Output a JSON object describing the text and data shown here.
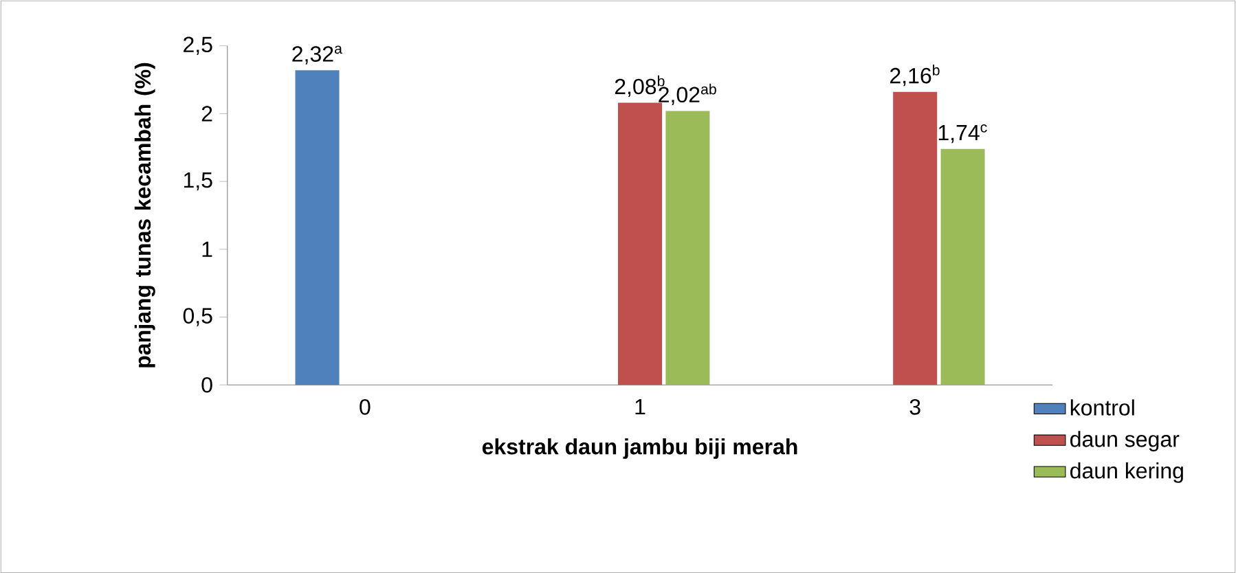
{
  "chart_data": {
    "type": "bar",
    "xlabel": "ekstrak daun jambu biji merah",
    "ylabel": "panjang tunas kecambah (%)",
    "categories": [
      "0",
      "1",
      "3"
    ],
    "series": [
      {
        "name": "kontrol",
        "color": "#4f81bd",
        "values": [
          2.32,
          null,
          null
        ],
        "value_labels": [
          "2,32$^{a}$",
          null,
          null
        ]
      },
      {
        "name": "daun segar",
        "color": "#c0504d",
        "values": [
          null,
          2.08,
          2.16
        ],
        "value_labels": [
          null,
          "2,08$^{b}$",
          "2,16$^{b}$"
        ]
      },
      {
        "name": "daun kering",
        "color": "#9bbb59",
        "values": [
          null,
          2.02,
          1.74
        ],
        "value_labels": [
          null,
          "2,02$^{ab}$",
          "1,74$^{c}$"
        ]
      }
    ],
    "ylim": [
      0,
      2.5
    ],
    "yticks": [
      {
        "value": 0,
        "label": "0"
      },
      {
        "value": 0.5,
        "label": "0,5"
      },
      {
        "value": 1,
        "label": "1"
      },
      {
        "value": 1.5,
        "label": "1,5"
      },
      {
        "value": 2,
        "label": "2"
      },
      {
        "value": 2.5,
        "label": "2,5"
      }
    ],
    "grid": false,
    "legend": "bottom right"
  }
}
